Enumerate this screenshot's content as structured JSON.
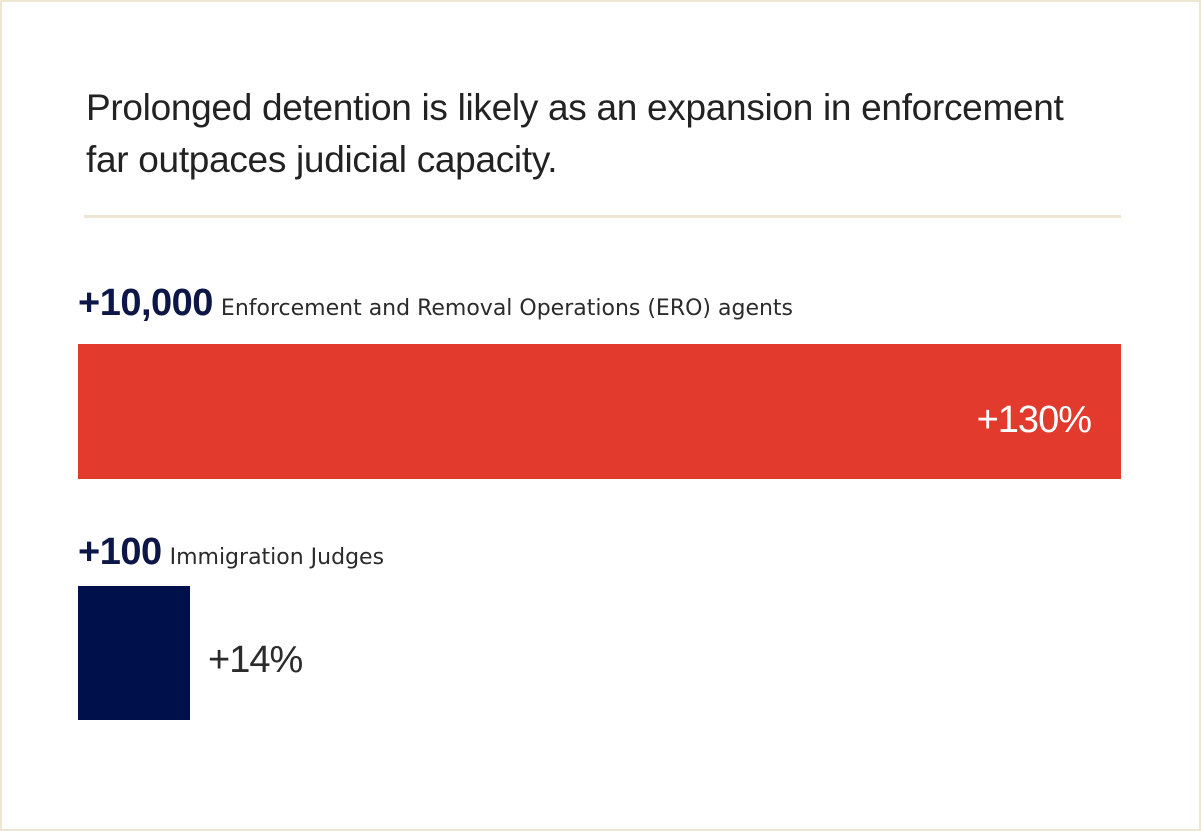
{
  "title": "Prolonged detention is likely as an expansion in enforcement far outpaces judicial capacity.",
  "colors": {
    "enforcement": "#e23a2d",
    "judges": "#00104a",
    "count_text": "#0d1747",
    "rule": "#efe5d3"
  },
  "chart_data": {
    "type": "bar",
    "orientation": "horizontal",
    "title": "Prolonged detention is likely as an expansion in enforcement far outpaces judicial capacity.",
    "categories": [
      "Enforcement and Removal Operations (ERO) agents",
      "Immigration Judges"
    ],
    "counts": [
      "+10,000",
      "+100"
    ],
    "values": [
      130,
      14
    ],
    "value_labels": [
      "+130%",
      "+14%"
    ],
    "unit": "%",
    "xlim": [
      0,
      130
    ],
    "grid": false,
    "legend": "none",
    "rows": [
      {
        "count": "+10,000",
        "label": "Enforcement and Removal Operations (ERO) agents",
        "value": 130,
        "value_label": "+130%",
        "color": "#e23a2d",
        "value_label_position": "inside-end",
        "value_label_color": "#ffffff"
      },
      {
        "count": "+100",
        "label": "Immigration Judges",
        "value": 14,
        "value_label": "+14%",
        "color": "#00104a",
        "value_label_position": "outside-end",
        "value_label_color": "#2b2b2b"
      }
    ]
  }
}
